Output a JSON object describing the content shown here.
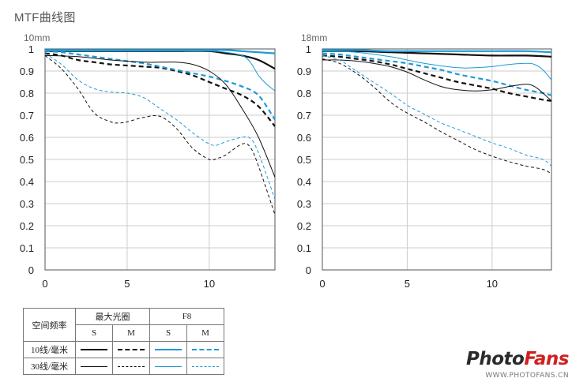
{
  "page": {
    "title": "MTF曲线图"
  },
  "colors": {
    "black": "#111111",
    "blue": "#1e9ad6",
    "grid": "#cccccc",
    "axis": "#555555"
  },
  "chart_data": [
    {
      "type": "line",
      "title": "10mm",
      "xlim": [
        0,
        14
      ],
      "ylim": [
        0,
        1
      ],
      "x_ticks": [
        "0",
        "5",
        "10"
      ],
      "y_ticks": [
        "0",
        "0.1",
        "0.2",
        "0.3",
        "0.4",
        "0.5",
        "0.6",
        "0.7",
        "0.8",
        "0.9",
        "1"
      ],
      "grid": true,
      "series": [
        {
          "freq": "10",
          "aperture": "max",
          "orient": "S",
          "x": [
            0,
            2,
            4,
            6,
            8,
            10,
            11,
            12,
            13,
            14
          ],
          "y": [
            0.99,
            0.99,
            0.99,
            0.99,
            0.99,
            0.99,
            0.98,
            0.97,
            0.95,
            0.91
          ]
        },
        {
          "freq": "10",
          "aperture": "max",
          "orient": "M",
          "x": [
            0,
            1,
            2,
            3,
            4,
            5,
            6,
            7,
            8,
            9,
            10,
            11,
            12,
            13,
            14
          ],
          "y": [
            0.98,
            0.97,
            0.95,
            0.94,
            0.93,
            0.925,
            0.92,
            0.915,
            0.9,
            0.88,
            0.85,
            0.82,
            0.79,
            0.74,
            0.65
          ]
        },
        {
          "freq": "10",
          "aperture": "F8",
          "orient": "S",
          "x": [
            0,
            2,
            4,
            6,
            8,
            10,
            11,
            12,
            13,
            14
          ],
          "y": [
            0.995,
            0.995,
            0.995,
            0.995,
            0.995,
            0.995,
            0.995,
            0.99,
            0.985,
            0.98
          ]
        },
        {
          "freq": "10",
          "aperture": "F8",
          "orient": "M",
          "x": [
            0,
            1,
            2,
            3,
            4,
            5,
            6,
            7,
            8,
            9,
            10,
            11,
            12,
            13,
            14
          ],
          "y": [
            0.99,
            0.985,
            0.975,
            0.965,
            0.955,
            0.945,
            0.935,
            0.92,
            0.905,
            0.89,
            0.875,
            0.855,
            0.83,
            0.79,
            0.68
          ]
        },
        {
          "freq": "30",
          "aperture": "max",
          "orient": "S",
          "x": [
            0,
            2,
            4,
            6,
            7,
            8,
            9,
            10,
            11,
            12,
            13,
            14
          ],
          "y": [
            0.97,
            0.965,
            0.95,
            0.94,
            0.94,
            0.94,
            0.93,
            0.9,
            0.84,
            0.73,
            0.6,
            0.42
          ]
        },
        {
          "freq": "30",
          "aperture": "max",
          "orient": "M",
          "x": [
            0,
            1,
            2,
            3,
            4,
            4.5,
            5,
            6,
            7,
            8,
            9,
            10,
            10.5,
            11,
            12,
            12.5,
            13,
            14
          ],
          "y": [
            0.97,
            0.91,
            0.82,
            0.71,
            0.67,
            0.665,
            0.67,
            0.69,
            0.695,
            0.64,
            0.55,
            0.5,
            0.505,
            0.52,
            0.57,
            0.555,
            0.47,
            0.25
          ]
        },
        {
          "freq": "30",
          "aperture": "F8",
          "orient": "S",
          "x": [
            0,
            2,
            4,
            6,
            8,
            10,
            11,
            12,
            12.5,
            13,
            13.5,
            14
          ],
          "y": [
            0.99,
            0.99,
            0.99,
            0.99,
            0.99,
            0.99,
            0.985,
            0.97,
            0.94,
            0.88,
            0.84,
            0.81
          ]
        },
        {
          "freq": "30",
          "aperture": "F8",
          "orient": "M",
          "x": [
            0,
            1,
            2,
            3,
            4,
            5,
            6,
            7,
            8,
            9,
            10,
            10.5,
            11,
            12,
            12.5,
            13,
            14
          ],
          "y": [
            0.98,
            0.93,
            0.86,
            0.82,
            0.805,
            0.8,
            0.78,
            0.73,
            0.68,
            0.62,
            0.57,
            0.565,
            0.58,
            0.6,
            0.595,
            0.53,
            0.32
          ]
        }
      ]
    },
    {
      "type": "line",
      "title": "18mm",
      "xlim": [
        0,
        13.5
      ],
      "ylim": [
        0,
        1
      ],
      "x_ticks": [
        "0",
        "5",
        "10"
      ],
      "y_ticks": [
        "0",
        "0.1",
        "0.2",
        "0.3",
        "0.4",
        "0.5",
        "0.6",
        "0.7",
        "0.8",
        "0.9",
        "1"
      ],
      "grid": true,
      "series": [
        {
          "freq": "10",
          "aperture": "max",
          "orient": "S",
          "x": [
            0,
            2,
            4,
            6,
            8,
            10,
            12,
            13.5
          ],
          "y": [
            0.99,
            0.99,
            0.985,
            0.98,
            0.975,
            0.97,
            0.97,
            0.965
          ]
        },
        {
          "freq": "10",
          "aperture": "max",
          "orient": "M",
          "x": [
            0,
            1,
            2,
            3,
            4,
            5,
            6,
            7,
            8,
            9,
            10,
            11,
            12,
            13,
            13.5
          ],
          "y": [
            0.97,
            0.965,
            0.955,
            0.945,
            0.93,
            0.91,
            0.89,
            0.87,
            0.85,
            0.835,
            0.82,
            0.8,
            0.785,
            0.77,
            0.765
          ]
        },
        {
          "freq": "10",
          "aperture": "F8",
          "orient": "S",
          "x": [
            0,
            2,
            4,
            6,
            8,
            10,
            12,
            13.5
          ],
          "y": [
            0.995,
            0.995,
            0.99,
            0.99,
            0.99,
            0.99,
            0.99,
            0.985
          ]
        },
        {
          "freq": "10",
          "aperture": "F8",
          "orient": "M",
          "x": [
            0,
            1,
            2,
            3,
            4,
            5,
            6,
            7,
            8,
            9,
            10,
            11,
            12,
            13,
            13.5
          ],
          "y": [
            0.98,
            0.975,
            0.965,
            0.955,
            0.945,
            0.935,
            0.92,
            0.905,
            0.885,
            0.87,
            0.855,
            0.835,
            0.815,
            0.8,
            0.79
          ]
        },
        {
          "freq": "30",
          "aperture": "max",
          "orient": "S",
          "x": [
            0,
            1,
            2,
            3,
            4,
            5,
            6,
            7,
            8,
            9,
            10,
            11,
            12,
            12.5,
            13,
            13.5
          ],
          "y": [
            0.95,
            0.95,
            0.945,
            0.935,
            0.92,
            0.895,
            0.86,
            0.83,
            0.815,
            0.81,
            0.815,
            0.83,
            0.84,
            0.83,
            0.8,
            0.765
          ]
        },
        {
          "freq": "30",
          "aperture": "max",
          "orient": "M",
          "x": [
            0,
            1,
            2,
            3,
            4,
            5,
            6,
            7,
            8,
            9,
            10,
            11,
            12,
            13,
            13.5
          ],
          "y": [
            0.955,
            0.935,
            0.89,
            0.83,
            0.76,
            0.71,
            0.67,
            0.625,
            0.585,
            0.545,
            0.515,
            0.49,
            0.47,
            0.455,
            0.435
          ]
        },
        {
          "freq": "30",
          "aperture": "F8",
          "orient": "S",
          "x": [
            0,
            2,
            4,
            6,
            8,
            9,
            10,
            11,
            12,
            12.5,
            13,
            13.5
          ],
          "y": [
            0.99,
            0.985,
            0.965,
            0.935,
            0.915,
            0.915,
            0.92,
            0.93,
            0.935,
            0.93,
            0.905,
            0.86
          ]
        },
        {
          "freq": "30",
          "aperture": "F8",
          "orient": "M",
          "x": [
            0,
            1,
            2,
            3,
            4,
            5,
            6,
            7,
            8,
            9,
            10,
            11,
            12,
            13,
            13.5
          ],
          "y": [
            0.97,
            0.95,
            0.9,
            0.85,
            0.8,
            0.745,
            0.705,
            0.665,
            0.635,
            0.605,
            0.575,
            0.55,
            0.52,
            0.5,
            0.47
          ]
        }
      ]
    }
  ],
  "legend": {
    "header_freq": "空间频率",
    "header_max": "最大光圈",
    "header_f8": "F8",
    "s": "S",
    "m": "M",
    "row_10": "10线/毫米",
    "row_30": "30线/毫米"
  },
  "watermark": {
    "logo_part1": "Photo",
    "logo_part2": "Fans",
    "url": "WWW.PHOTOFANS.CN"
  }
}
